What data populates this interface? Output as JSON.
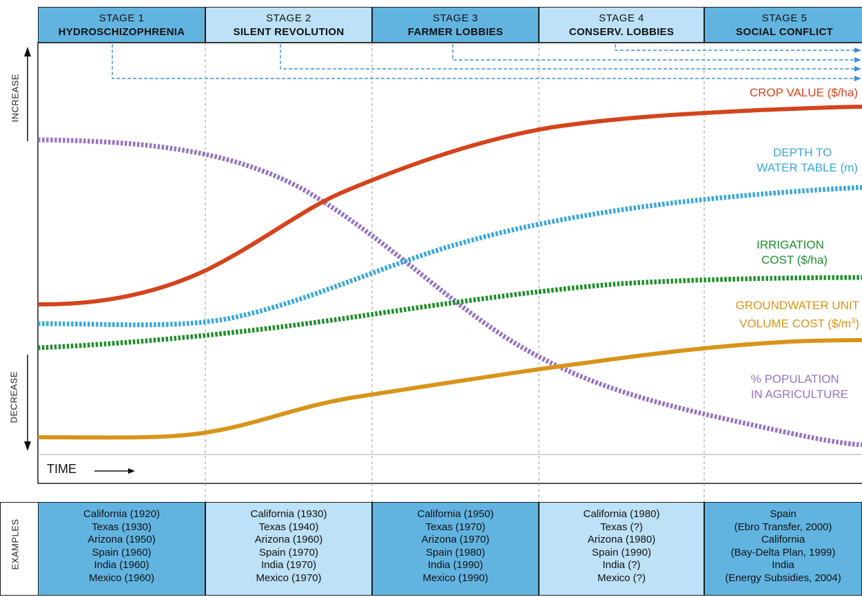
{
  "stages": [
    {
      "num": "STAGE 1",
      "name": "HYDROSCHIZOPHRENIA"
    },
    {
      "num": "STAGE 2",
      "name": "SILENT REVOLUTION"
    },
    {
      "num": "STAGE 3",
      "name": "FARMER LOBBIES"
    },
    {
      "num": "STAGE 4",
      "name": "CONSERV. LOBBIES"
    },
    {
      "num": "STAGE 5",
      "name": "SOCIAL CONFLICT"
    }
  ],
  "axis": {
    "increase": "INCREASE",
    "decrease": "DECREASE",
    "time": "TIME",
    "examples": "EXAMPLES"
  },
  "curves": {
    "crop_value": {
      "label": "CROP VALUE ($/ha)",
      "color": "#d4441c"
    },
    "depth": {
      "label1": "DEPTH TO",
      "label2": "WATER TABLE (m)",
      "color": "#3aa6de"
    },
    "irrigation": {
      "label1": "IRRIGATION",
      "label2": "COST ($/ha)",
      "color": "#1f8f2a"
    },
    "groundwater": {
      "label1": "GROUNDWATER UNIT",
      "label2": "VOLUME COST ($/m",
      "sup": "3",
      "close": ")",
      "color": "#d8941a"
    },
    "population": {
      "label1": "% POPULATION",
      "label2": "IN AGRICULTURE",
      "color": "#9574c2"
    }
  },
  "examples": [
    [
      "California (1920)",
      "Texas (1930)",
      "Arizona (1950)",
      "Spain (1960)",
      "India (1960)",
      "Mexico (1960)"
    ],
    [
      "California (1930)",
      "Texas (1940)",
      "Arizona (1960)",
      "Spain (1970)",
      "India (1970)",
      "Mexico (1970)"
    ],
    [
      "California (1950)",
      "Texas (1970)",
      "Arizona (1970)",
      "Spain (1980)",
      "India (1990)",
      "Mexico (1990)"
    ],
    [
      "California (1980)",
      "Texas (?)",
      "Arizona (1980)",
      "Spain (1990)",
      "India (?)",
      "Mexico (?)"
    ],
    [
      "Spain",
      "(Ebro Transfer, 2000)",
      "California",
      "(Bay-Delta Plan, 1999)",
      "India",
      "(Energy Subsidies, 2004)"
    ]
  ],
  "arrow_color": "#3a8fd8"
}
